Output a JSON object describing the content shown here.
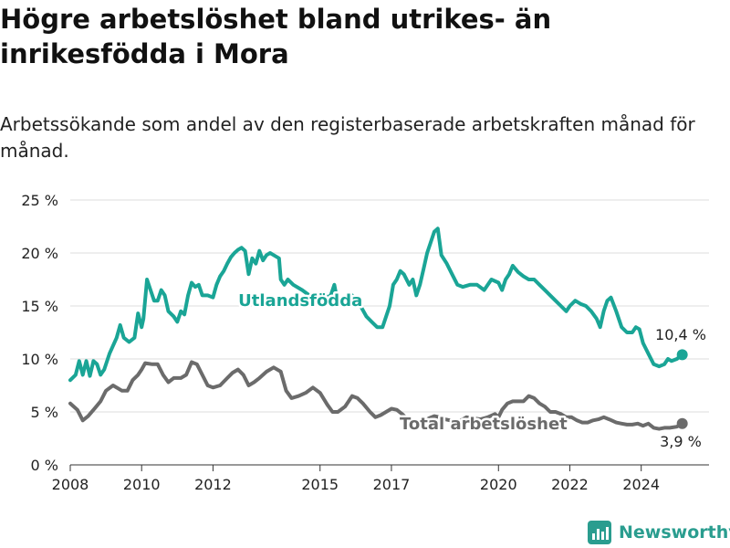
{
  "title": "Högre arbetslöshet bland utrikes- än inrikesfödda i Mora",
  "subtitle": "Arbetssökande som andel av den registerbaserade arbetskraften månad för månad.",
  "brand": {
    "name": "Newsworthy",
    "icon": "newsworthy-bar-chart-icon"
  },
  "colors": {
    "utlandsfodda": "#1aa596",
    "total": "#6b6b6b",
    "grid": "#dddddd",
    "axis": "#333333"
  },
  "chart_data": {
    "type": "line",
    "ylim": [
      0,
      25
    ],
    "xlim": [
      2008,
      2025.9
    ],
    "yticks": [
      0,
      5,
      10,
      15,
      20,
      25
    ],
    "ytick_labels": [
      "0 %",
      "5 %",
      "10 %",
      "15 %",
      "20 %",
      "25 %"
    ],
    "xticks": [
      2008,
      2010,
      2012,
      2015,
      2017,
      2020,
      2022,
      2024
    ],
    "xtick_labels": [
      "2008",
      "2010",
      "2012",
      "2015",
      "2017",
      "2020",
      "2022",
      "2024"
    ],
    "grid": true,
    "series": [
      {
        "name": "Utlandsfödda",
        "color": "#1aa596",
        "end_label": "10,4 %",
        "points": [
          [
            2008.0,
            8.0
          ],
          [
            2008.15,
            8.5
          ],
          [
            2008.25,
            9.8
          ],
          [
            2008.35,
            8.5
          ],
          [
            2008.45,
            9.8
          ],
          [
            2008.55,
            8.4
          ],
          [
            2008.65,
            9.8
          ],
          [
            2008.75,
            9.5
          ],
          [
            2008.85,
            8.5
          ],
          [
            2008.95,
            9.0
          ],
          [
            2009.1,
            10.5
          ],
          [
            2009.3,
            12.0
          ],
          [
            2009.4,
            13.2
          ],
          [
            2009.5,
            12.0
          ],
          [
            2009.65,
            11.6
          ],
          [
            2009.8,
            12.0
          ],
          [
            2009.9,
            14.3
          ],
          [
            2010.0,
            13.0
          ],
          [
            2010.05,
            13.8
          ],
          [
            2010.15,
            17.5
          ],
          [
            2010.25,
            16.5
          ],
          [
            2010.35,
            15.5
          ],
          [
            2010.45,
            15.5
          ],
          [
            2010.55,
            16.5
          ],
          [
            2010.65,
            16.0
          ],
          [
            2010.75,
            14.5
          ],
          [
            2010.9,
            14.0
          ],
          [
            2011.0,
            13.5
          ],
          [
            2011.1,
            14.5
          ],
          [
            2011.2,
            14.2
          ],
          [
            2011.3,
            16.0
          ],
          [
            2011.4,
            17.2
          ],
          [
            2011.5,
            16.8
          ],
          [
            2011.6,
            17.0
          ],
          [
            2011.7,
            16.0
          ],
          [
            2011.85,
            16.0
          ],
          [
            2012.0,
            15.8
          ],
          [
            2012.1,
            17.0
          ],
          [
            2012.2,
            17.8
          ],
          [
            2012.3,
            18.3
          ],
          [
            2012.4,
            19.0
          ],
          [
            2012.5,
            19.6
          ],
          [
            2012.6,
            20.0
          ],
          [
            2012.7,
            20.3
          ],
          [
            2012.8,
            20.5
          ],
          [
            2012.9,
            20.2
          ],
          [
            2013.0,
            18.0
          ],
          [
            2013.1,
            19.5
          ],
          [
            2013.2,
            19.0
          ],
          [
            2013.3,
            20.2
          ],
          [
            2013.4,
            19.3
          ],
          [
            2013.5,
            19.8
          ],
          [
            2013.6,
            20.0
          ],
          [
            2013.7,
            19.8
          ],
          [
            2013.85,
            19.5
          ],
          [
            2013.9,
            17.5
          ],
          [
            2014.0,
            17.0
          ],
          [
            2014.1,
            17.5
          ],
          [
            2014.25,
            17.0
          ],
          [
            2014.5,
            16.5
          ],
          [
            2014.7,
            16.0
          ],
          [
            2014.85,
            15.5
          ],
          [
            2015.0,
            15.0
          ],
          [
            2015.1,
            16.2
          ],
          [
            2015.2,
            15.8
          ],
          [
            2015.3,
            16.0
          ],
          [
            2015.4,
            17.0
          ],
          [
            2015.5,
            15.2
          ],
          [
            2015.65,
            15.0
          ],
          [
            2015.9,
            16.0
          ],
          [
            2016.0,
            15.5
          ],
          [
            2016.1,
            15.2
          ],
          [
            2016.3,
            14.0
          ],
          [
            2016.45,
            13.5
          ],
          [
            2016.6,
            13.0
          ],
          [
            2016.75,
            13.0
          ],
          [
            2016.85,
            14.0
          ],
          [
            2016.95,
            15.0
          ],
          [
            2017.05,
            17.0
          ],
          [
            2017.15,
            17.5
          ],
          [
            2017.25,
            18.3
          ],
          [
            2017.35,
            18.0
          ],
          [
            2017.5,
            17.0
          ],
          [
            2017.6,
            17.5
          ],
          [
            2017.7,
            16.0
          ],
          [
            2017.8,
            17.0
          ],
          [
            2017.9,
            18.5
          ],
          [
            2018.0,
            20.0
          ],
          [
            2018.1,
            21.0
          ],
          [
            2018.2,
            22.0
          ],
          [
            2018.3,
            22.3
          ],
          [
            2018.4,
            19.8
          ],
          [
            2018.55,
            19.0
          ],
          [
            2018.7,
            18.0
          ],
          [
            2018.85,
            17.0
          ],
          [
            2019.0,
            16.8
          ],
          [
            2019.2,
            17.0
          ],
          [
            2019.4,
            17.0
          ],
          [
            2019.6,
            16.5
          ],
          [
            2019.8,
            17.5
          ],
          [
            2020.0,
            17.2
          ],
          [
            2020.1,
            16.5
          ],
          [
            2020.2,
            17.5
          ],
          [
            2020.3,
            18.0
          ],
          [
            2020.4,
            18.8
          ],
          [
            2020.55,
            18.2
          ],
          [
            2020.7,
            17.8
          ],
          [
            2020.85,
            17.5
          ],
          [
            2021.0,
            17.5
          ],
          [
            2021.15,
            17.0
          ],
          [
            2021.3,
            16.5
          ],
          [
            2021.45,
            16.0
          ],
          [
            2021.6,
            15.5
          ],
          [
            2021.75,
            15.0
          ],
          [
            2021.9,
            14.5
          ],
          [
            2022.0,
            15.0
          ],
          [
            2022.15,
            15.5
          ],
          [
            2022.3,
            15.2
          ],
          [
            2022.45,
            15.0
          ],
          [
            2022.6,
            14.5
          ],
          [
            2022.75,
            13.8
          ],
          [
            2022.85,
            13.0
          ],
          [
            2022.95,
            14.5
          ],
          [
            2023.05,
            15.5
          ],
          [
            2023.15,
            15.8
          ],
          [
            2023.3,
            14.5
          ],
          [
            2023.45,
            13.0
          ],
          [
            2023.6,
            12.5
          ],
          [
            2023.75,
            12.5
          ],
          [
            2023.85,
            13.0
          ],
          [
            2023.95,
            12.8
          ],
          [
            2024.05,
            11.5
          ],
          [
            2024.2,
            10.5
          ],
          [
            2024.35,
            9.5
          ],
          [
            2024.5,
            9.3
          ],
          [
            2024.65,
            9.5
          ],
          [
            2024.75,
            10.0
          ],
          [
            2024.85,
            9.8
          ],
          [
            2025.0,
            10.0
          ],
          [
            2025.15,
            10.4
          ]
        ]
      },
      {
        "name": "Total arbetslöshet",
        "color": "#6b6b6b",
        "end_label": "3,9 %",
        "points": [
          [
            2008.0,
            5.8
          ],
          [
            2008.2,
            5.2
          ],
          [
            2008.35,
            4.2
          ],
          [
            2008.5,
            4.6
          ],
          [
            2008.7,
            5.4
          ],
          [
            2008.85,
            6.0
          ],
          [
            2009.0,
            7.0
          ],
          [
            2009.2,
            7.5
          ],
          [
            2009.45,
            7.0
          ],
          [
            2009.6,
            7.0
          ],
          [
            2009.75,
            8.0
          ],
          [
            2009.9,
            8.5
          ],
          [
            2010.0,
            9.0
          ],
          [
            2010.1,
            9.6
          ],
          [
            2010.3,
            9.5
          ],
          [
            2010.45,
            9.5
          ],
          [
            2010.6,
            8.5
          ],
          [
            2010.75,
            7.8
          ],
          [
            2010.9,
            8.2
          ],
          [
            2011.1,
            8.2
          ],
          [
            2011.25,
            8.5
          ],
          [
            2011.4,
            9.7
          ],
          [
            2011.55,
            9.5
          ],
          [
            2011.7,
            8.5
          ],
          [
            2011.85,
            7.5
          ],
          [
            2012.0,
            7.3
          ],
          [
            2012.2,
            7.5
          ],
          [
            2012.4,
            8.2
          ],
          [
            2012.55,
            8.7
          ],
          [
            2012.7,
            9.0
          ],
          [
            2012.85,
            8.5
          ],
          [
            2013.0,
            7.5
          ],
          [
            2013.15,
            7.8
          ],
          [
            2013.3,
            8.2
          ],
          [
            2013.5,
            8.8
          ],
          [
            2013.7,
            9.2
          ],
          [
            2013.9,
            8.8
          ],
          [
            2014.05,
            7.0
          ],
          [
            2014.2,
            6.3
          ],
          [
            2014.4,
            6.5
          ],
          [
            2014.6,
            6.8
          ],
          [
            2014.8,
            7.3
          ],
          [
            2015.0,
            6.8
          ],
          [
            2015.2,
            5.7
          ],
          [
            2015.35,
            5.0
          ],
          [
            2015.5,
            5.0
          ],
          [
            2015.7,
            5.5
          ],
          [
            2015.9,
            6.5
          ],
          [
            2016.05,
            6.3
          ],
          [
            2016.2,
            5.8
          ],
          [
            2016.4,
            5.0
          ],
          [
            2016.55,
            4.5
          ],
          [
            2016.7,
            4.7
          ],
          [
            2016.85,
            5.0
          ],
          [
            2017.0,
            5.3
          ],
          [
            2017.15,
            5.2
          ],
          [
            2017.3,
            4.8
          ],
          [
            2017.45,
            4.3
          ],
          [
            2017.6,
            4.0
          ],
          [
            2017.75,
            3.8
          ],
          [
            2017.9,
            4.0
          ],
          [
            2018.05,
            4.4
          ],
          [
            2018.2,
            4.6
          ],
          [
            2018.35,
            4.5
          ],
          [
            2018.5,
            4.3
          ],
          [
            2018.65,
            4.2
          ],
          [
            2018.8,
            4.1
          ],
          [
            2018.95,
            4.2
          ],
          [
            2019.1,
            4.5
          ],
          [
            2019.3,
            4.4
          ],
          [
            2019.5,
            4.3
          ],
          [
            2019.7,
            4.5
          ],
          [
            2019.9,
            4.8
          ],
          [
            2020.0,
            4.5
          ],
          [
            2020.1,
            5.2
          ],
          [
            2020.25,
            5.8
          ],
          [
            2020.4,
            6.0
          ],
          [
            2020.55,
            6.0
          ],
          [
            2020.7,
            6.0
          ],
          [
            2020.85,
            6.5
          ],
          [
            2021.0,
            6.3
          ],
          [
            2021.15,
            5.8
          ],
          [
            2021.3,
            5.5
          ],
          [
            2021.45,
            5.0
          ],
          [
            2021.6,
            5.0
          ],
          [
            2021.75,
            4.8
          ],
          [
            2021.9,
            4.5
          ],
          [
            2022.05,
            4.5
          ],
          [
            2022.2,
            4.2
          ],
          [
            2022.35,
            4.0
          ],
          [
            2022.5,
            4.0
          ],
          [
            2022.65,
            4.2
          ],
          [
            2022.8,
            4.3
          ],
          [
            2022.95,
            4.5
          ],
          [
            2023.1,
            4.3
          ],
          [
            2023.3,
            4.0
          ],
          [
            2023.45,
            3.9
          ],
          [
            2023.6,
            3.8
          ],
          [
            2023.75,
            3.8
          ],
          [
            2023.9,
            3.9
          ],
          [
            2024.05,
            3.7
          ],
          [
            2024.2,
            3.9
          ],
          [
            2024.35,
            3.5
          ],
          [
            2024.5,
            3.4
          ],
          [
            2024.65,
            3.5
          ],
          [
            2024.8,
            3.5
          ],
          [
            2025.0,
            3.6
          ],
          [
            2025.15,
            3.9
          ]
        ]
      }
    ]
  }
}
